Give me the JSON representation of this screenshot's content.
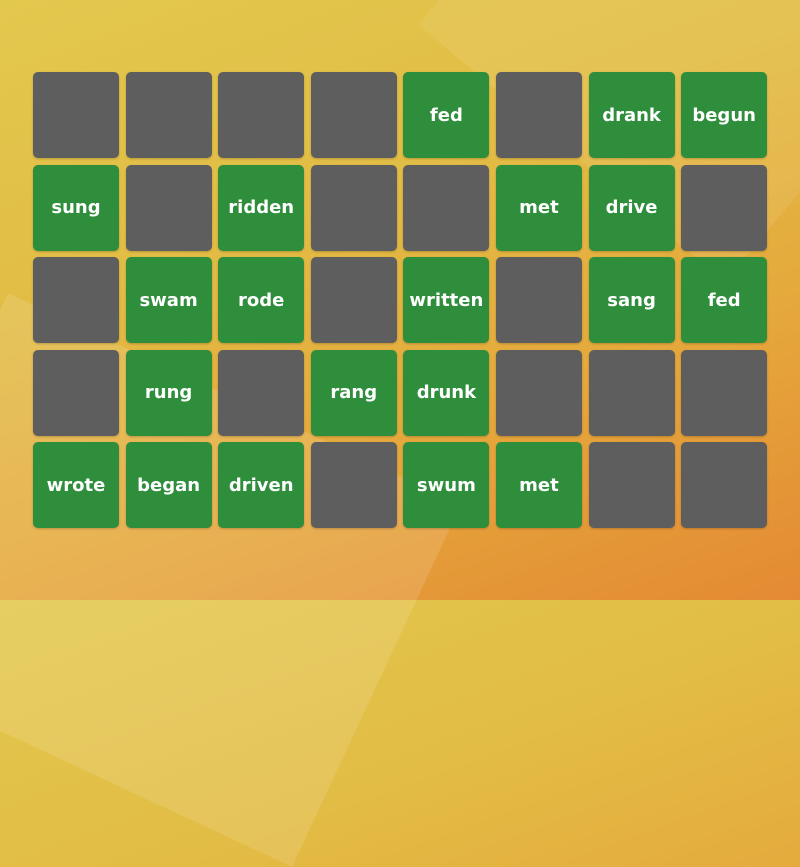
{
  "colors": {
    "hidden_tile": "#5e5e5e",
    "revealed_tile": "#2e8e3c",
    "background": "#e3b845"
  },
  "tiles": [
    [
      "",
      "",
      "",
      "",
      "fed",
      "",
      "drank",
      "begun"
    ],
    [
      "sung",
      "",
      "ridden",
      "",
      "",
      "met",
      "drive",
      ""
    ],
    [
      "",
      "swam",
      "rode",
      "",
      "written",
      "",
      "sang",
      "fed"
    ],
    [
      "",
      "rung",
      "",
      "rang",
      "drunk",
      "",
      "",
      ""
    ],
    [
      "wrote",
      "began",
      "driven",
      "",
      "swum",
      "met",
      "",
      ""
    ]
  ]
}
